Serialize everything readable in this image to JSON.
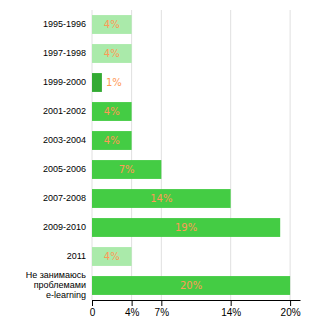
{
  "chart_data": {
    "type": "bar",
    "orientation": "horizontal",
    "categories": [
      "1995-1996",
      "1997-1998",
      "1999-2000",
      "2001-2002",
      "2003-2004",
      "2005-2006",
      "2007-2008",
      "2009-2010",
      "2011",
      "Не занимаюсь\nпроблемами\ne-learning"
    ],
    "values": [
      4,
      4,
      1,
      4,
      4,
      7,
      14,
      19,
      4,
      20
    ],
    "value_labels": [
      "4%",
      "4%",
      "1%",
      "4%",
      "4%",
      "7%",
      "14%",
      "19%",
      "4%",
      "20%"
    ],
    "colors": [
      "#AAEAAA",
      "#AAEAAA",
      "#33AA33",
      "#44CC44",
      "#44CC44",
      "#44CC44",
      "#44CC44",
      "#44CC44",
      "#AAEAAA",
      "#44CC44"
    ],
    "xlim": [
      0,
      21
    ],
    "xticks": [
      0,
      {
        "value": 4,
        "label": "4%"
      },
      {
        "value": 7,
        "label": "7%"
      },
      {
        "value": 14,
        "label": "14%"
      },
      {
        "value": 20,
        "label": "20%"
      }
    ],
    "grid": true,
    "data_labels": true
  }
}
